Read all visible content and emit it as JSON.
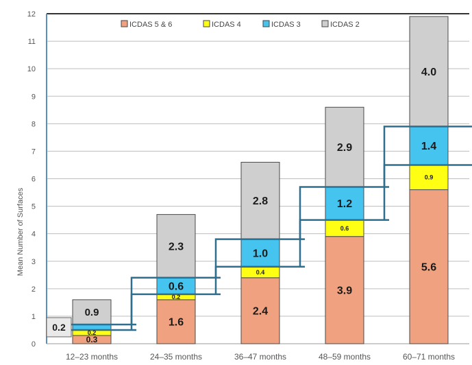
{
  "colors": {
    "icdas_5_6": "#F0A17F",
    "icdas_4": "#FFFF14",
    "icdas_3": "#45C4F0",
    "icdas_2": "#CFCFCF",
    "stair_line": "#2E6E8E",
    "grid": "#BDBDBD",
    "axis_frame": "#5B8FB9"
  },
  "chart_data": {
    "type": "bar",
    "stacked": true,
    "ylabel": "Mean Number of Surfaces",
    "xlabel": "",
    "ylim": [
      0,
      12
    ],
    "yticks": [
      "0",
      "1",
      "2",
      "3",
      "4",
      "5",
      "6",
      "7",
      "8",
      "9",
      "10",
      "11",
      "12"
    ],
    "categories": [
      "12–23 months",
      "24–35 months",
      "36–47 months",
      "48–59 months",
      "60–71 months"
    ],
    "legend_position": "top",
    "grid": true,
    "series": [
      {
        "name": "ICDAS 5 & 6",
        "values": [
          0.3,
          1.6,
          2.4,
          3.9,
          5.6
        ],
        "labels": [
          "0.3",
          "1.6",
          "2.4",
          "3.9",
          "5.6"
        ]
      },
      {
        "name": "ICDAS 4",
        "values": [
          0.2,
          0.2,
          0.4,
          0.6,
          0.9
        ],
        "labels": [
          "0.2",
          "0.2",
          "0.4",
          "0.6",
          "0.9"
        ]
      },
      {
        "name": "ICDAS 3",
        "values": [
          0.2,
          0.6,
          1.0,
          1.2,
          1.4
        ],
        "labels": [
          "0.2",
          "0.6",
          "1.0",
          "1.2",
          "1.4"
        ]
      },
      {
        "name": "ICDAS 2",
        "values": [
          0.9,
          2.3,
          2.8,
          2.9,
          4.0
        ],
        "labels": [
          "0.9",
          "2.3",
          "2.8",
          "2.9",
          "4.0"
        ]
      }
    ]
  }
}
